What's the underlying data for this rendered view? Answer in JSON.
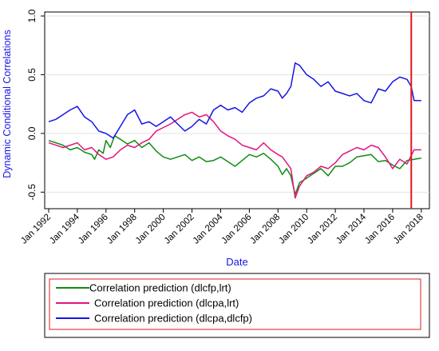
{
  "chart_data": {
    "type": "line",
    "xlabel": "Date",
    "ylabel": "Dynamic Conditional Correlations",
    "xlim": [
      1992,
      2018.4
    ],
    "ylim": [
      -0.6,
      1.0
    ],
    "yticks": [
      -0.5,
      0.0,
      0.5,
      1.0
    ],
    "ytick_labels": [
      "-0.5",
      "0.0",
      "0.5",
      "1.0"
    ],
    "xticks": [
      1992,
      1994,
      1996,
      1998,
      2000,
      2002,
      2004,
      2006,
      2008,
      2010,
      2012,
      2014,
      2016,
      2018
    ],
    "xtick_labels": [
      "Jan 1992",
      "Jan 1994",
      "Jan 1996",
      "Jan 1998",
      "Jan 2000",
      "Jan 2002",
      "Jan 2004",
      "Jan 2006",
      "Jan 2008",
      "Jan 2010",
      "Jan 2012",
      "Jan 2014",
      "Jan 2016",
      "Jan 2018"
    ],
    "vline": {
      "x": 2017.3,
      "color": "#e0191b"
    },
    "legend_placement": "bottom",
    "series": [
      {
        "name": "Correlation prediction (dlcfp,lrt)",
        "color": "#118c11",
        "x": [
          1992.0,
          1992.5,
          1993.0,
          1993.5,
          1994.0,
          1994.5,
          1995.0,
          1995.2,
          1995.5,
          1995.8,
          1996.0,
          1996.3,
          1996.6,
          1997.0,
          1997.5,
          1998.0,
          1998.5,
          1999.0,
          1999.5,
          2000.0,
          2000.5,
          2001.0,
          2001.5,
          2002.0,
          2002.5,
          2003.0,
          2003.5,
          2004.0,
          2004.5,
          2005.0,
          2005.5,
          2006.0,
          2006.5,
          2007.0,
          2007.5,
          2008.0,
          2008.3,
          2008.6,
          2008.9,
          2009.2,
          2009.5,
          2010.0,
          2010.5,
          2011.0,
          2011.5,
          2012.0,
          2012.5,
          2013.0,
          2013.5,
          2014.0,
          2014.5,
          2015.0,
          2015.5,
          2016.0,
          2016.5,
          2017.0,
          2017.5,
          2018.0
        ],
        "values": [
          -0.06,
          -0.08,
          -0.1,
          -0.14,
          -0.12,
          -0.16,
          -0.18,
          -0.22,
          -0.14,
          -0.17,
          -0.06,
          -0.12,
          -0.02,
          -0.05,
          -0.09,
          -0.06,
          -0.12,
          -0.08,
          -0.15,
          -0.2,
          -0.22,
          -0.2,
          -0.18,
          -0.23,
          -0.2,
          -0.24,
          -0.23,
          -0.2,
          -0.24,
          -0.28,
          -0.23,
          -0.18,
          -0.2,
          -0.17,
          -0.22,
          -0.28,
          -0.35,
          -0.3,
          -0.36,
          -0.52,
          -0.42,
          -0.38,
          -0.34,
          -0.3,
          -0.36,
          -0.28,
          -0.28,
          -0.25,
          -0.2,
          -0.19,
          -0.18,
          -0.24,
          -0.23,
          -0.27,
          -0.3,
          -0.23,
          -0.22,
          -0.21
        ]
      },
      {
        "name": "Correlation prediction (dlcpa,lrt)",
        "color": "#e2147e",
        "x": [
          1992.0,
          1992.5,
          1993.0,
          1993.5,
          1994.0,
          1994.5,
          1995.0,
          1995.5,
          1996.0,
          1996.5,
          1997.0,
          1997.5,
          1998.0,
          1998.5,
          1999.0,
          1999.5,
          2000.0,
          2000.5,
          2001.0,
          2001.5,
          2002.0,
          2002.5,
          2003.0,
          2003.5,
          2004.0,
          2004.5,
          2005.0,
          2005.5,
          2006.0,
          2006.5,
          2007.0,
          2007.5,
          2008.0,
          2008.3,
          2008.6,
          2008.9,
          2009.2,
          2009.5,
          2010.0,
          2010.5,
          2011.0,
          2011.5,
          2012.0,
          2012.5,
          2013.0,
          2013.5,
          2014.0,
          2014.5,
          2015.0,
          2015.5,
          2016.0,
          2016.5,
          2017.0,
          2017.5,
          2018.0
        ],
        "values": [
          -0.08,
          -0.1,
          -0.12,
          -0.1,
          -0.08,
          -0.14,
          -0.12,
          -0.18,
          -0.22,
          -0.2,
          -0.14,
          -0.1,
          -0.12,
          -0.08,
          -0.05,
          0.02,
          0.05,
          0.08,
          0.12,
          0.16,
          0.18,
          0.14,
          0.16,
          0.1,
          0.02,
          -0.02,
          -0.05,
          -0.1,
          -0.12,
          -0.14,
          -0.08,
          -0.14,
          -0.18,
          -0.2,
          -0.25,
          -0.3,
          -0.55,
          -0.45,
          -0.36,
          -0.33,
          -0.28,
          -0.3,
          -0.25,
          -0.18,
          -0.15,
          -0.12,
          -0.14,
          -0.1,
          -0.12,
          -0.2,
          -0.3,
          -0.22,
          -0.26,
          -0.14,
          -0.14
        ]
      },
      {
        "name": "Correlation prediction (dlcpa,dlcfp)",
        "color": "#1515e6",
        "x": [
          1992.0,
          1992.5,
          1993.0,
          1993.5,
          1994.0,
          1994.5,
          1995.0,
          1995.5,
          1996.0,
          1996.5,
          1997.0,
          1997.5,
          1998.0,
          1998.5,
          1999.0,
          1999.5,
          2000.0,
          2000.5,
          2001.0,
          2001.5,
          2002.0,
          2002.5,
          2003.0,
          2003.5,
          2004.0,
          2004.5,
          2005.0,
          2005.5,
          2006.0,
          2006.5,
          2007.0,
          2007.5,
          2008.0,
          2008.3,
          2008.6,
          2008.9,
          2009.2,
          2009.5,
          2010.0,
          2010.5,
          2011.0,
          2011.5,
          2012.0,
          2012.5,
          2013.0,
          2013.5,
          2014.0,
          2014.5,
          2015.0,
          2015.5,
          2016.0,
          2016.5,
          2017.0,
          2017.3,
          2017.5,
          2018.0
        ],
        "values": [
          0.1,
          0.12,
          0.16,
          0.2,
          0.23,
          0.14,
          0.1,
          0.02,
          0.0,
          -0.04,
          0.06,
          0.16,
          0.2,
          0.08,
          0.1,
          0.06,
          0.1,
          0.14,
          0.08,
          0.02,
          0.06,
          0.12,
          0.08,
          0.2,
          0.24,
          0.2,
          0.22,
          0.18,
          0.26,
          0.3,
          0.32,
          0.38,
          0.36,
          0.3,
          0.34,
          0.4,
          0.6,
          0.58,
          0.5,
          0.46,
          0.4,
          0.44,
          0.36,
          0.34,
          0.32,
          0.34,
          0.28,
          0.26,
          0.38,
          0.36,
          0.44,
          0.48,
          0.46,
          0.4,
          0.28,
          0.28
        ]
      }
    ]
  }
}
